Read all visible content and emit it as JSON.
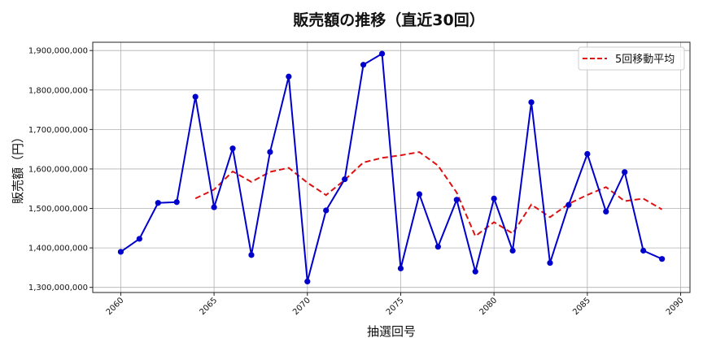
{
  "chart_data": {
    "type": "line",
    "title": "販売額の推移（直近30回）",
    "xlabel": "抽選回号",
    "ylabel": "販売額（円）",
    "x": [
      2060,
      2061,
      2062,
      2063,
      2064,
      2065,
      2066,
      2067,
      2068,
      2069,
      2070,
      2071,
      2072,
      2073,
      2074,
      2075,
      2076,
      2077,
      2078,
      2079,
      2080,
      2081,
      2082,
      2083,
      2084,
      2085,
      2086,
      2087,
      2088,
      2089
    ],
    "series": [
      {
        "name": "販売額",
        "style": "solid-with-markers",
        "color": "#0000cc",
        "values": [
          1390000000,
          1423000000,
          1514000000,
          1516000000,
          1783000000,
          1503000000,
          1652000000,
          1382000000,
          1643000000,
          1834000000,
          1315000000,
          1495000000,
          1574000000,
          1864000000,
          1892000000,
          1348000000,
          1536000000,
          1403000000,
          1522000000,
          1340000000,
          1525000000,
          1393000000,
          1769000000,
          1362000000,
          1509000000,
          1638000000,
          1492000000,
          1592000000,
          1393000000,
          1372000000
        ]
      },
      {
        "name": "5回移動平均",
        "style": "dashed",
        "color": "#dd1111",
        "values": [
          null,
          null,
          null,
          null,
          1525200000,
          1547800000,
          1593600000,
          1567200000,
          1592600000,
          1602800000,
          1565200000,
          1533800000,
          1572200000,
          1616400000,
          1628000000,
          1634600000,
          1642800000,
          1608600000,
          1540200000,
          1429800000,
          1465200000,
          1436600000,
          1509800000,
          1477800000,
          1511600000,
          1534200000,
          1554000000,
          1518600000,
          1524800000,
          1497400000
        ]
      }
    ],
    "x_ticks": [
      2060,
      2065,
      2070,
      2075,
      2080,
      2085,
      2090
    ],
    "y_ticks": [
      1300000000,
      1400000000,
      1500000000,
      1600000000,
      1700000000,
      1800000000,
      1900000000
    ],
    "y_tick_labels": [
      "1,300,000,000",
      "1,400,000,000",
      "1,500,000,000",
      "1,600,000,000",
      "1,700,000,000",
      "1,800,000,000",
      "1,900,000,000"
    ],
    "xlim": [
      2058.5,
      2090.5
    ],
    "ylim": [
      1287000000,
      1921000000
    ],
    "grid": true,
    "legend": {
      "position": "upper right",
      "entries": [
        "5回移動平均"
      ]
    }
  },
  "colors": {
    "sales_line": "#0000cc",
    "moving_average": "#dd1111",
    "grid": "#b0b0b0",
    "axis": "#222222"
  }
}
